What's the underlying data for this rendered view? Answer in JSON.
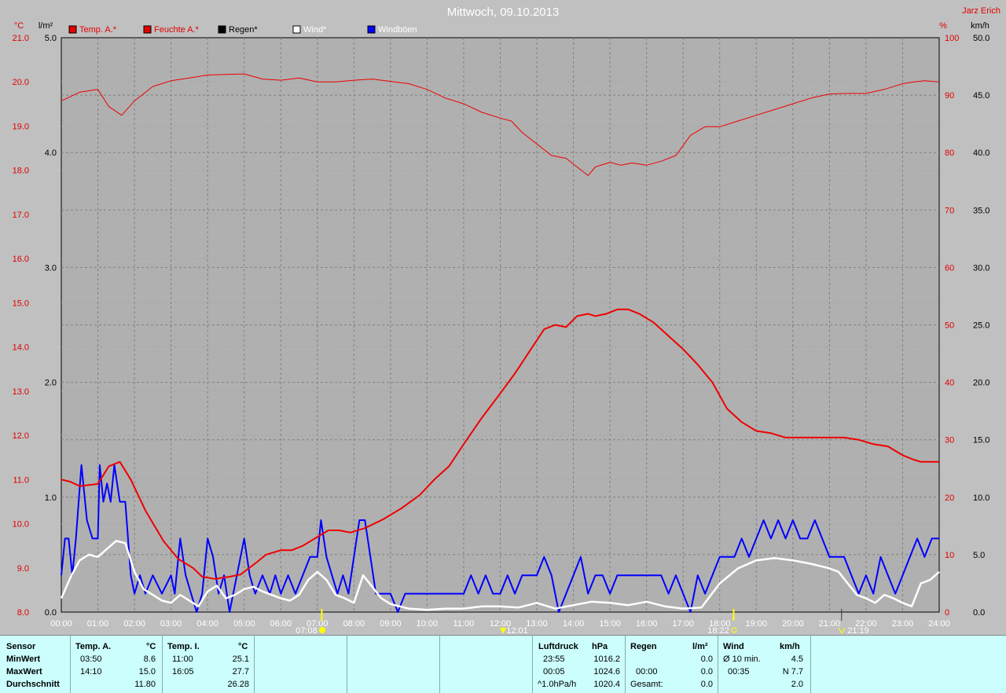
{
  "header": {
    "title": "Mittwoch, 09.10.2013",
    "author": "Jarz Erich",
    "unit_temp": "°C",
    "unit_rain": "l/m²",
    "unit_pct": "%",
    "unit_kmh": "km/h"
  },
  "legend": [
    {
      "label": "Temp. A.*",
      "color": "#e00000"
    },
    {
      "label": "Feuchte A.*",
      "color": "#e00000"
    },
    {
      "label": "Regen*",
      "color": "#000000"
    },
    {
      "label": "Wind*",
      "color": "#ffffff"
    },
    {
      "label": "Windböen",
      "color": "#0000ff"
    }
  ],
  "markers": {
    "sunrise": "07:08",
    "noon": "12:01",
    "sunset": "18:22",
    "moonset": "21:19"
  },
  "chart_data": {
    "type": "line",
    "xlim": [
      0,
      24
    ],
    "x_ticks": [
      "00:00",
      "01:00",
      "02:00",
      "03:00",
      "04:00",
      "05:00",
      "06:00",
      "07:00",
      "08:00",
      "09:00",
      "10:00",
      "11:00",
      "12:00",
      "13:00",
      "14:00",
      "15:00",
      "16:00",
      "17:00",
      "18:00",
      "19:00",
      "20:00",
      "21:00",
      "22:00",
      "23:00",
      "24:00"
    ],
    "axes": {
      "temp": {
        "unit": "°C",
        "range": [
          8.0,
          21.0
        ],
        "ticks": [
          "21.0",
          "20.0",
          "19.0",
          "18.0",
          "17.0",
          "16.0",
          "15.0",
          "14.0",
          "13.0",
          "12.0",
          "11.0",
          "10.0",
          "9.0",
          "8.0"
        ]
      },
      "rain": {
        "unit": "l/m²",
        "range": [
          0.0,
          5.0
        ],
        "ticks": [
          "5.0",
          "4.0",
          "3.0",
          "2.0",
          "1.0",
          "0.0"
        ]
      },
      "humidity": {
        "unit": "%",
        "range": [
          0,
          100
        ],
        "ticks": [
          "100",
          "90",
          "80",
          "70",
          "60",
          "50",
          "40",
          "30",
          "20",
          "10",
          "0"
        ]
      },
      "wind": {
        "unit": "km/h",
        "range": [
          0.0,
          50.0
        ],
        "ticks": [
          "50.0",
          "45.0",
          "40.0",
          "35.0",
          "30.0",
          "25.0",
          "20.0",
          "15.0",
          "10.0",
          "5.0",
          "0.0"
        ]
      }
    },
    "series": [
      {
        "name": "Temp. A.*",
        "axis": "temp",
        "color": "#ee0000",
        "x": [
          0,
          0.25,
          0.5,
          1.0,
          1.3,
          1.6,
          1.9,
          2.3,
          2.8,
          3.2,
          3.6,
          3.85,
          4.2,
          4.6,
          4.9,
          5.3,
          5.6,
          6.0,
          6.3,
          6.6,
          7.0,
          7.3,
          7.6,
          7.9,
          8.3,
          8.8,
          9.3,
          9.8,
          10.2,
          10.6,
          11.0,
          11.5,
          12.0,
          12.4,
          12.8,
          13.2,
          13.5,
          13.8,
          14.1,
          14.4,
          14.6,
          14.9,
          15.2,
          15.5,
          15.8,
          16.2,
          16.6,
          17.0,
          17.4,
          17.8,
          18.2,
          18.6,
          19.0,
          19.4,
          19.8,
          20.2,
          20.6,
          21.0,
          21.4,
          21.8,
          22.2,
          22.6,
          23.0,
          23.3,
          23.5,
          24.0
        ],
        "y": [
          11.0,
          10.95,
          10.85,
          10.9,
          11.3,
          11.4,
          11.0,
          10.3,
          9.6,
          9.2,
          9.0,
          8.8,
          8.75,
          8.8,
          8.85,
          9.1,
          9.3,
          9.4,
          9.4,
          9.5,
          9.7,
          9.85,
          9.85,
          9.8,
          9.9,
          10.1,
          10.35,
          10.65,
          11.0,
          11.3,
          11.8,
          12.4,
          12.95,
          13.4,
          13.9,
          14.4,
          14.5,
          14.45,
          14.7,
          14.75,
          14.7,
          14.75,
          14.85,
          14.85,
          14.75,
          14.55,
          14.25,
          13.95,
          13.6,
          13.2,
          12.6,
          12.3,
          12.1,
          12.05,
          11.95,
          11.95,
          11.95,
          11.95,
          11.95,
          11.9,
          11.8,
          11.75,
          11.55,
          11.45,
          11.4,
          11.4
        ]
      },
      {
        "name": "Feuchte A.*",
        "axis": "humidity",
        "color": "#ee0000",
        "x": [
          0,
          0.5,
          1.0,
          1.3,
          1.65,
          2.0,
          2.5,
          3.0,
          3.5,
          4.0,
          4.5,
          5.0,
          5.5,
          6.0,
          6.5,
          7.0,
          7.5,
          8.0,
          8.5,
          9.0,
          9.5,
          10.0,
          10.5,
          11.0,
          11.5,
          12.0,
          12.3,
          12.6,
          13.0,
          13.4,
          13.8,
          14.2,
          14.4,
          14.6,
          15.0,
          15.3,
          15.6,
          16.0,
          16.4,
          16.8,
          17.2,
          17.6,
          18.0,
          18.5,
          19.0,
          19.5,
          20.0,
          20.5,
          21.0,
          21.5,
          22.0,
          22.5,
          23.0,
          23.3,
          23.6,
          24.0
        ],
        "y": [
          89,
          90.5,
          91,
          88,
          86.5,
          89,
          91.5,
          92.5,
          93,
          93.5,
          93.6,
          93.7,
          92.8,
          92.6,
          93,
          92.3,
          92.3,
          92.6,
          92.8,
          92.4,
          92.0,
          91,
          89.5,
          88.5,
          87,
          86,
          85.5,
          83.5,
          81.5,
          79.5,
          79,
          77,
          76,
          77.5,
          78.3,
          77.8,
          78.2,
          77.8,
          78.5,
          79.5,
          83,
          84.5,
          84.5,
          85.5,
          86.5,
          87.5,
          88.5,
          89.5,
          90.2,
          90.3,
          90.3,
          91,
          92,
          92.3,
          92.5,
          92.3
        ]
      },
      {
        "name": "Wind*",
        "axis": "wind",
        "color": "#ffffff",
        "x": [
          0,
          0.25,
          0.5,
          0.75,
          1.0,
          1.25,
          1.5,
          1.75,
          2.0,
          2.25,
          2.5,
          2.75,
          3.0,
          3.25,
          3.5,
          3.75,
          4.0,
          4.25,
          4.5,
          4.75,
          5.0,
          5.25,
          5.5,
          5.75,
          6.0,
          6.25,
          6.5,
          6.75,
          7.0,
          7.25,
          7.5,
          7.75,
          8.0,
          8.25,
          8.5,
          8.75,
          9.0,
          9.5,
          10.0,
          10.5,
          11.0,
          11.5,
          12.0,
          12.5,
          13.0,
          13.5,
          14.0,
          14.5,
          15.0,
          15.5,
          16.0,
          16.5,
          17.0,
          17.5,
          18.0,
          18.5,
          19.0,
          19.5,
          20.0,
          20.5,
          21.0,
          21.25,
          21.5,
          21.75,
          22.0,
          22.25,
          22.5,
          22.75,
          23.0,
          23.25,
          23.5,
          23.75,
          24.0
        ],
        "y": [
          1.2,
          3.0,
          4.5,
          5.0,
          4.8,
          5.5,
          6.2,
          6.0,
          3.5,
          2.0,
          1.5,
          1.0,
          0.8,
          1.5,
          1.0,
          0.5,
          1.8,
          2.3,
          1.2,
          1.5,
          2.0,
          2.2,
          1.8,
          1.5,
          1.2,
          1.0,
          1.5,
          2.8,
          3.5,
          2.8,
          1.5,
          1.2,
          0.8,
          3.2,
          2.2,
          1.2,
          0.7,
          0.3,
          0.2,
          0.3,
          0.3,
          0.5,
          0.5,
          0.4,
          0.8,
          0.3,
          0.6,
          0.9,
          0.8,
          0.6,
          0.9,
          0.5,
          0.3,
          0.4,
          2.5,
          3.8,
          4.5,
          4.7,
          4.5,
          4.2,
          3.8,
          3.5,
          2.5,
          1.5,
          1.2,
          0.8,
          1.5,
          1.2,
          0.8,
          0.5,
          2.5,
          2.8,
          3.5
        ]
      },
      {
        "name": "Windböen",
        "axis": "wind",
        "color": "#0000ff",
        "x": [
          0,
          0.1,
          0.2,
          0.3,
          0.4,
          0.55,
          0.7,
          0.85,
          1.0,
          1.05,
          1.15,
          1.25,
          1.35,
          1.45,
          1.6,
          1.75,
          1.9,
          2.0,
          2.15,
          2.3,
          2.5,
          2.75,
          3.0,
          3.1,
          3.25,
          3.4,
          3.55,
          3.7,
          3.85,
          4.0,
          4.15,
          4.3,
          4.45,
          4.6,
          4.8,
          5.0,
          5.15,
          5.3,
          5.5,
          5.7,
          5.85,
          6.0,
          6.2,
          6.4,
          6.6,
          6.8,
          7.0,
          7.1,
          7.25,
          7.4,
          7.55,
          7.7,
          7.85,
          8.0,
          8.15,
          8.3,
          8.45,
          8.6,
          8.8,
          9.0,
          9.2,
          9.4,
          9.6,
          9.8,
          10.0,
          10.5,
          11.0,
          11.2,
          11.4,
          11.6,
          11.8,
          12.0,
          12.2,
          12.4,
          12.6,
          12.8,
          13.0,
          13.2,
          13.4,
          13.6,
          13.8,
          14.0,
          14.2,
          14.4,
          14.6,
          14.8,
          15.0,
          15.2,
          15.4,
          15.6,
          15.8,
          16.0,
          16.2,
          16.4,
          16.6,
          16.8,
          17.0,
          17.2,
          17.4,
          17.6,
          17.8,
          18.0,
          18.2,
          18.4,
          18.6,
          18.8,
          19.0,
          19.2,
          19.4,
          19.6,
          19.8,
          20.0,
          20.2,
          20.4,
          20.6,
          20.8,
          21.0,
          21.2,
          21.4,
          21.6,
          21.8,
          22.0,
          22.2,
          22.4,
          22.6,
          22.8,
          23.0,
          23.2,
          23.4,
          23.6,
          23.8,
          24.0
        ],
        "y": [
          3.2,
          6.4,
          6.4,
          3.2,
          6.4,
          12.8,
          8.0,
          6.4,
          6.4,
          12.8,
          9.6,
          11.2,
          9.6,
          12.8,
          9.6,
          9.6,
          3.2,
          1.6,
          3.2,
          1.6,
          3.2,
          1.6,
          3.2,
          1.6,
          6.4,
          3.2,
          1.6,
          0.0,
          1.6,
          6.4,
          4.8,
          1.6,
          3.2,
          0.0,
          3.2,
          6.4,
          3.2,
          1.6,
          3.2,
          1.6,
          3.2,
          1.6,
          3.2,
          1.6,
          3.2,
          4.8,
          4.8,
          8.0,
          4.8,
          3.2,
          1.6,
          3.2,
          1.6,
          4.8,
          8.0,
          8.0,
          4.8,
          1.6,
          1.6,
          1.6,
          0.0,
          1.6,
          1.6,
          1.6,
          1.6,
          1.6,
          1.6,
          3.2,
          1.6,
          3.2,
          1.6,
          1.6,
          3.2,
          1.6,
          3.2,
          3.2,
          3.2,
          4.8,
          3.2,
          0.0,
          1.6,
          3.2,
          4.8,
          1.6,
          3.2,
          3.2,
          1.6,
          3.2,
          3.2,
          3.2,
          3.2,
          3.2,
          3.2,
          3.2,
          1.6,
          3.2,
          1.6,
          0.0,
          3.2,
          1.6,
          3.2,
          4.8,
          4.8,
          4.8,
          6.4,
          4.8,
          6.4,
          8.0,
          6.4,
          8.0,
          6.4,
          8.0,
          6.4,
          6.4,
          8.0,
          6.4,
          4.8,
          4.8,
          4.8,
          3.2,
          1.6,
          3.2,
          1.6,
          4.8,
          3.2,
          1.6,
          3.2,
          4.8,
          6.4,
          4.8,
          6.4,
          6.4
        ]
      },
      {
        "name": "Regen*",
        "axis": "rain",
        "color": "#000000",
        "x": [
          0,
          24
        ],
        "y": [
          0.0,
          0.0
        ]
      }
    ]
  },
  "stats": {
    "sensor": {
      "label": "Sensor",
      "rows": [
        "MinWert",
        "MaxWert",
        "Durchschnitt"
      ]
    },
    "temp_a": {
      "title": "Temp. A.",
      "unit": "°C",
      "min_time": "03:50",
      "min_val": "8.6",
      "max_time": "14:10",
      "max_val": "15.0",
      "avg": "11.80"
    },
    "temp_i": {
      "title": "Temp. I.",
      "unit": "°C",
      "min_time": "11:00",
      "min_val": "25.1",
      "max_time": "16:05",
      "max_val": "27.7",
      "avg": "26.28"
    },
    "luftdruck": {
      "title": "Luftdruck",
      "unit": "hPa",
      "r1_time": "23:55",
      "r1_val": "1016.2",
      "r2_time": "00:05",
      "r2_val": "1024.6",
      "r3_time": "^1.0hPa/h",
      "r3_val": "1020.4"
    },
    "regen": {
      "title": "Regen",
      "unit": "l/m²",
      "r2_time": "00:00",
      "r2_val": "0.0",
      "r1_val": "0.0",
      "r3_label": "Gesamt:",
      "r3_val": "0.0"
    },
    "wind": {
      "title": "Wind",
      "unit": "km/h",
      "r1_label": "Ø 10 min.",
      "r1_val": "4.5",
      "r2_time": "00:35",
      "r2_val": "N 7.7",
      "r3_val": "2.0"
    }
  }
}
